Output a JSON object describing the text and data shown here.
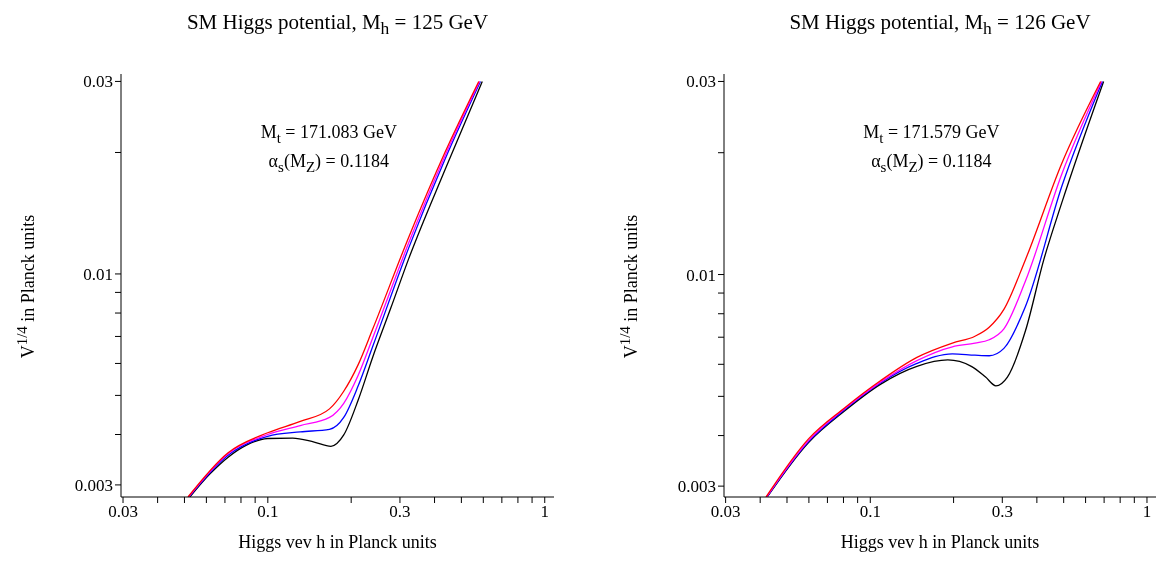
{
  "chart_data": [
    {
      "type": "line",
      "title": "SM Higgs potential, M$_{h}$ = 125 GeV",
      "xlabel": "Higgs vev h in Planck units",
      "ylabel": "V$^{1/4}$ in Planck units",
      "annotations": [
        "M$_{t}$ = 171.083 GeV",
        "α$_{s}$(M$_{Z}$) = 0.1184"
      ],
      "log": "xy",
      "marker": "none",
      "xlim": [
        0.0295,
        1.08
      ],
      "ylim": [
        0.0028,
        0.0313
      ],
      "xticks": [
        0.03,
        {
          "value": 0.04,
          "label": null
        },
        {
          "value": 0.05,
          "label": null
        },
        {
          "value": 0.06,
          "label": null
        },
        {
          "value": 0.07,
          "label": null
        },
        {
          "value": 0.08,
          "label": null
        },
        {
          "value": 0.09,
          "label": null
        },
        0.1,
        {
          "value": 0.2,
          "label": null
        },
        0.3,
        {
          "value": 0.4,
          "label": null
        },
        {
          "value": 0.5,
          "label": null
        },
        {
          "value": 0.6,
          "label": null
        },
        {
          "value": 0.7,
          "label": null
        },
        {
          "value": 0.8,
          "label": null
        },
        {
          "value": 0.9,
          "label": null
        },
        1
      ],
      "yticks": [
        0.003,
        {
          "value": 0.004,
          "label": null
        },
        {
          "value": 0.005,
          "label": null
        },
        {
          "value": 0.006,
          "label": null
        },
        {
          "value": 0.007,
          "label": null
        },
        {
          "value": 0.008,
          "label": null
        },
        {
          "value": 0.009,
          "label": null
        },
        0.01,
        {
          "value": 0.02,
          "label": null
        },
        0.03
      ],
      "series": [
        {
          "color": "#000000",
          "x": [
            0.0523,
            0.0617,
            0.0717,
            0.0834,
            0.0999,
            0.123,
            0.147,
            0.169,
            0.188,
            0.212,
            0.239,
            0.278,
            0.323,
            0.436,
            0.595
          ],
          "values": [
            0.0028,
            0.00319,
            0.00351,
            0.00376,
            0.00391,
            0.00392,
            0.00383,
            0.00374,
            0.00399,
            0.00487,
            0.00621,
            0.00823,
            0.01093,
            0.0181,
            0.03
          ]
        },
        {
          "color": "#0000ff",
          "x": [
            0.0519,
            0.0717,
            0.0999,
            0.131,
            0.167,
            0.188,
            0.212,
            0.239,
            0.323,
            0.436,
            0.586
          ],
          "values": [
            0.0028,
            0.00355,
            0.00396,
            0.00406,
            0.00412,
            0.00441,
            0.00528,
            0.0066,
            0.01162,
            0.01922,
            0.03
          ]
        },
        {
          "color": "#ff00ff",
          "x": [
            0.0517,
            0.0717,
            0.0999,
            0.131,
            0.167,
            0.188,
            0.212,
            0.239,
            0.323,
            0.436,
            0.582
          ],
          "values": [
            0.0028,
            0.00358,
            0.004,
            0.00421,
            0.00441,
            0.00478,
            0.00561,
            0.00693,
            0.01196,
            0.01961,
            0.03
          ]
        },
        {
          "color": "#ff0000",
          "x": [
            0.0515,
            0.0717,
            0.0999,
            0.131,
            0.167,
            0.188,
            0.212,
            0.239,
            0.323,
            0.436,
            0.578
          ],
          "values": [
            0.0028,
            0.0036,
            0.00404,
            0.00431,
            0.00463,
            0.00512,
            0.00596,
            0.00729,
            0.01235,
            0.01999,
            0.03
          ]
        }
      ]
    },
    {
      "type": "line",
      "title": "SM Higgs potential, M$_{h}$ = 126 GeV",
      "xlabel": "Higgs vev h in Planck units",
      "ylabel": "V$^{1/4}$ in Planck units",
      "annotations": [
        "M$_{t}$ = 171.579 GeV",
        "α$_{s}$(M$_{Z}$) = 0.1184"
      ],
      "log": "xy",
      "marker": "none",
      "xlim": [
        0.0296,
        1.078
      ],
      "ylim": [
        0.00282,
        0.0313
      ],
      "xticks": [
        0.03,
        {
          "value": 0.04,
          "label": null
        },
        {
          "value": 0.05,
          "label": null
        },
        {
          "value": 0.06,
          "label": null
        },
        {
          "value": 0.07,
          "label": null
        },
        {
          "value": 0.08,
          "label": null
        },
        {
          "value": 0.09,
          "label": null
        },
        0.1,
        {
          "value": 0.2,
          "label": null
        },
        0.3,
        {
          "value": 0.4,
          "label": null
        },
        {
          "value": 0.5,
          "label": null
        },
        {
          "value": 0.6,
          "label": null
        },
        {
          "value": 0.7,
          "label": null
        },
        {
          "value": 0.8,
          "label": null
        },
        {
          "value": 0.9,
          "label": null
        },
        1
      ],
      "yticks": [
        0.003,
        {
          "value": 0.004,
          "label": null
        },
        {
          "value": 0.005,
          "label": null
        },
        {
          "value": 0.006,
          "label": null
        },
        {
          "value": 0.007,
          "label": null
        },
        {
          "value": 0.008,
          "label": null
        },
        {
          "value": 0.009,
          "label": null
        },
        0.01,
        {
          "value": 0.02,
          "label": null
        },
        0.03
      ],
      "series": [
        {
          "color": "#000000",
          "x": [
            0.0424,
            0.0597,
            0.0807,
            0.1091,
            0.1474,
            0.1906,
            0.2318,
            0.261,
            0.2844,
            0.313,
            0.364,
            0.424,
            0.492,
            0.697
          ],
          "values": [
            0.00282,
            0.00384,
            0.0046,
            0.00536,
            0.00593,
            0.00615,
            0.00593,
            0.00558,
            0.00531,
            0.00558,
            0.00727,
            0.0109,
            0.01503,
            0.03
          ]
        },
        {
          "color": "#0000ff",
          "x": [
            0.0423,
            0.0597,
            0.0807,
            0.1091,
            0.1474,
            0.198,
            0.239,
            0.269,
            0.304,
            0.364,
            0.492,
            0.69
          ],
          "values": [
            0.00282,
            0.00386,
            0.00463,
            0.0054,
            0.00603,
            0.00637,
            0.00632,
            0.0063,
            0.00657,
            0.00835,
            0.0165,
            0.03
          ]
        },
        {
          "color": "#ff00ff",
          "x": [
            0.0422,
            0.0597,
            0.0807,
            0.1091,
            0.1474,
            0.198,
            0.239,
            0.269,
            0.304,
            0.364,
            0.492,
            0.685
          ],
          "values": [
            0.00282,
            0.00388,
            0.00466,
            0.00543,
            0.00613,
            0.00663,
            0.00677,
            0.0069,
            0.00734,
            0.00965,
            0.0177,
            0.03
          ]
        },
        {
          "color": "#ff0000",
          "x": [
            0.042,
            0.0597,
            0.0807,
            0.1091,
            0.1474,
            0.198,
            0.239,
            0.269,
            0.304,
            0.364,
            0.492,
            0.68
          ],
          "values": [
            0.00282,
            0.00392,
            0.00468,
            0.00547,
            0.00624,
            0.00677,
            0.00704,
            0.00741,
            0.0082,
            0.0109,
            0.01882,
            0.03
          ]
        }
      ]
    }
  ]
}
